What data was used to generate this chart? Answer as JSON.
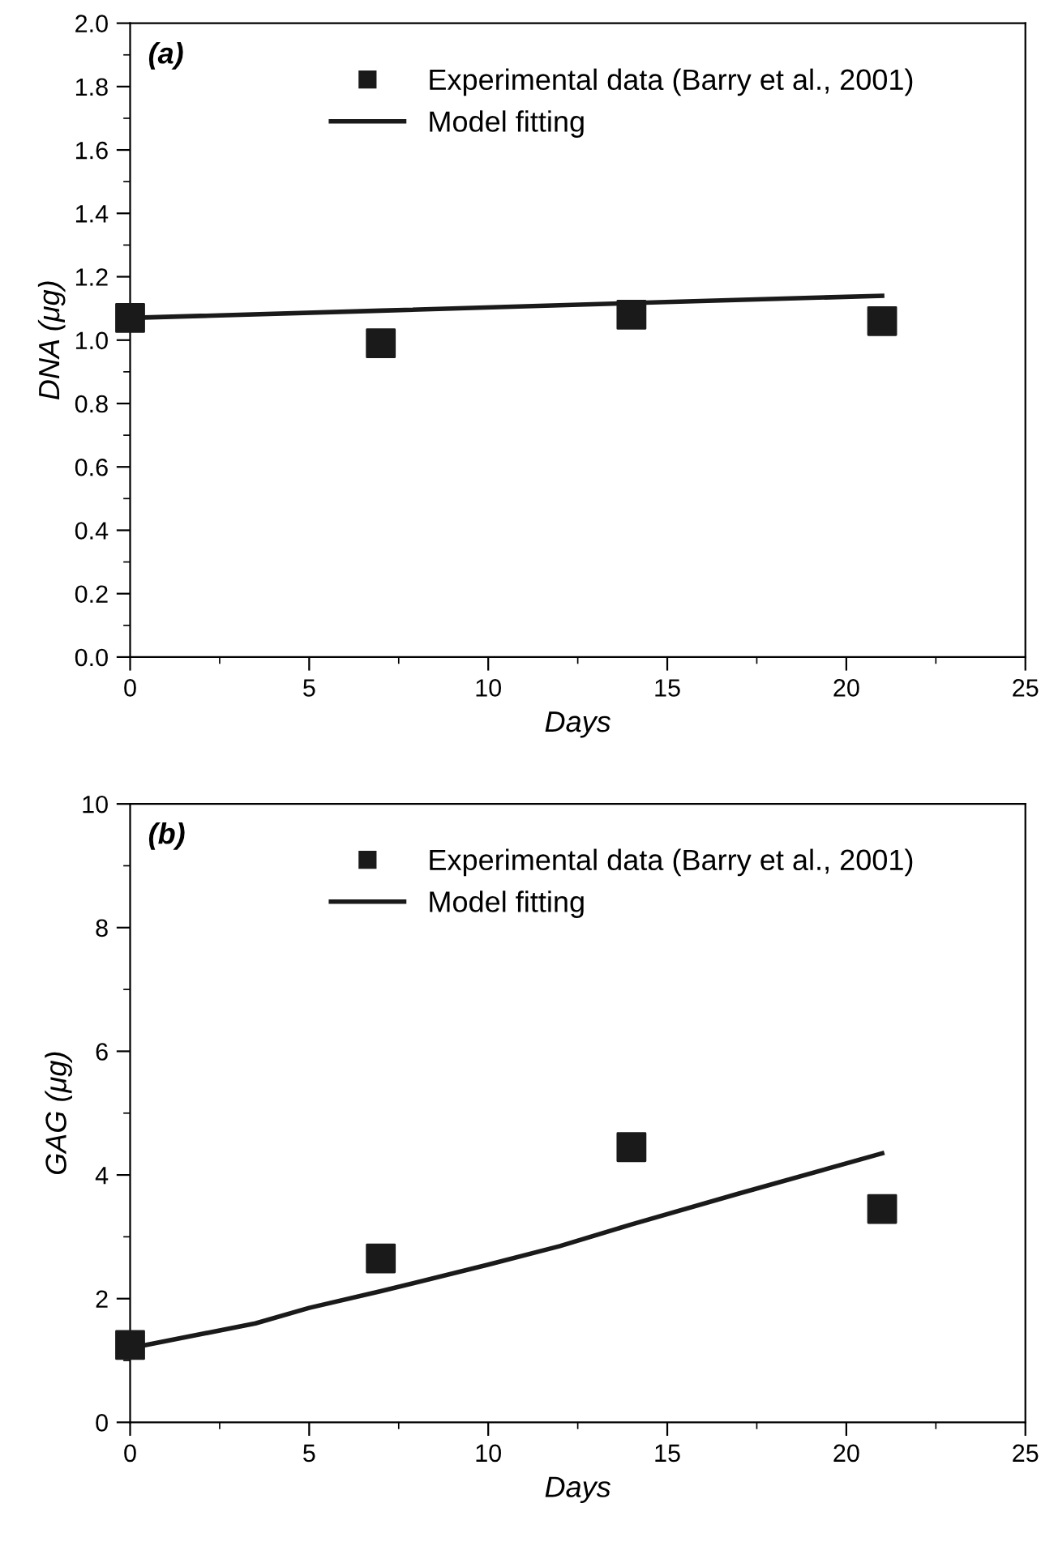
{
  "chart_data": [
    {
      "type": "scatter",
      "annotations": [
        "(a)"
      ],
      "xlabel": "Days",
      "ylabel": "DNA (μg)",
      "xlim": [
        0,
        25
      ],
      "ylim": [
        0,
        2.0
      ],
      "xticks": [
        0,
        {
          "value": 2.5,
          "label": null
        },
        5,
        {
          "value": 7.5,
          "label": null
        },
        10,
        {
          "value": 12.5,
          "label": null
        },
        15,
        {
          "value": 17.5,
          "label": null
        },
        20,
        {
          "value": 22.5,
          "label": null
        },
        25
      ],
      "yticks": [
        {
          "value": 0,
          "label": "0.0"
        },
        {
          "value": 0.1,
          "label": null
        },
        0.2,
        {
          "value": 0.3,
          "label": null
        },
        0.4,
        {
          "value": 0.5,
          "label": null
        },
        0.6,
        {
          "value": 0.7,
          "label": null
        },
        0.8,
        {
          "value": 0.9,
          "label": null
        },
        {
          "value": 1.0,
          "label": "1.0"
        },
        {
          "value": 1.1,
          "label": null
        },
        1.2,
        {
          "value": 1.3,
          "label": null
        },
        1.4,
        {
          "value": 1.5,
          "label": null
        },
        1.6,
        {
          "value": 1.7,
          "label": null
        },
        1.8,
        {
          "value": 1.9,
          "label": null
        },
        {
          "value": 2.0,
          "label": "2.0"
        }
      ],
      "legend": "top",
      "grid": false,
      "series": [
        {
          "name": "Experimental data (Barry et al., 2001)",
          "marker": "square",
          "color": "#1a1a1a",
          "x": [
            0,
            7,
            14,
            21
          ],
          "values": [
            1.07,
            0.99,
            1.08,
            1.06
          ]
        },
        {
          "name": "Model fitting",
          "type": "line",
          "marker": "none",
          "line_style": "solid",
          "color": "#1a1a1a",
          "x": [
            0,
            7,
            14,
            21
          ],
          "values": [
            1.07,
            1.093,
            1.117,
            1.14
          ]
        }
      ]
    },
    {
      "type": "scatter",
      "annotations": [
        "(b)"
      ],
      "xlabel": "Days",
      "ylabel": "GAG (μg)",
      "xlim": [
        0,
        25
      ],
      "ylim": [
        0,
        10
      ],
      "xticks": [
        0,
        {
          "value": 2.5,
          "label": null
        },
        5,
        {
          "value": 7.5,
          "label": null
        },
        10,
        {
          "value": 12.5,
          "label": null
        },
        15,
        {
          "value": 17.5,
          "label": null
        },
        20,
        {
          "value": 22.5,
          "label": null
        },
        25
      ],
      "yticks": [
        0,
        {
          "value": 1,
          "label": null
        },
        2,
        {
          "value": 3,
          "label": null
        },
        4,
        {
          "value": 5,
          "label": null
        },
        6,
        {
          "value": 7,
          "label": null
        },
        8,
        {
          "value": 9,
          "label": null
        },
        10
      ],
      "legend": "top",
      "grid": false,
      "series": [
        {
          "name": "Experimental data (Barry et al., 2001)",
          "marker": "square",
          "color": "#1a1a1a",
          "x": [
            0,
            7,
            14,
            21
          ],
          "values": [
            1.25,
            2.65,
            4.45,
            3.45
          ]
        },
        {
          "name": "Model fitting",
          "type": "line",
          "marker": "none",
          "line_style": "solid",
          "color": "#1a1a1a",
          "x": [
            0,
            3.5,
            5,
            7,
            10,
            12,
            14,
            17,
            21
          ],
          "values": [
            1.2,
            1.6,
            1.85,
            2.12,
            2.55,
            2.85,
            3.2,
            3.7,
            4.35
          ]
        }
      ]
    }
  ]
}
